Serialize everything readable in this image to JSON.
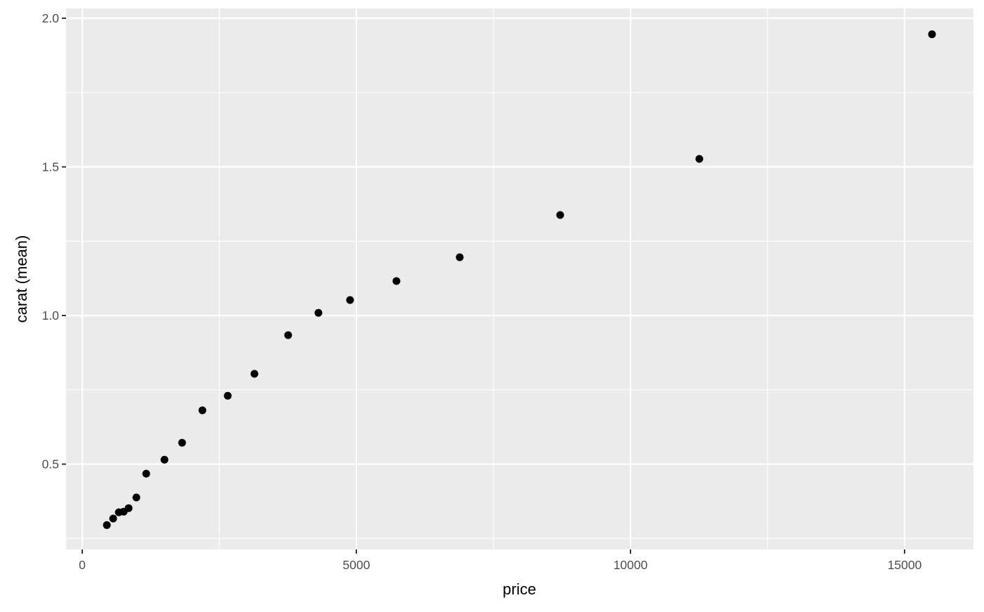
{
  "chart_data": {
    "type": "scatter",
    "title": "",
    "xlabel": "price",
    "ylabel": "carat (mean)",
    "xlim": [
      -295,
      16256
    ],
    "ylim": [
      0.213,
      2.033
    ],
    "xticks": [
      0,
      5000,
      10000,
      15000
    ],
    "xtick_labels": [
      "0",
      "5000",
      "10000",
      "15000"
    ],
    "yticks": [
      0.5,
      1.0,
      1.5,
      2.0
    ],
    "ytick_labels": [
      "0.5",
      "1.0",
      "1.5",
      "2.0"
    ],
    "grid": true,
    "background": "#EBEBEB",
    "point_color": "#000000",
    "points": [
      {
        "x": 449,
        "y": 0.295
      },
      {
        "x": 564,
        "y": 0.317
      },
      {
        "x": 667,
        "y": 0.338
      },
      {
        "x": 756,
        "y": 0.34
      },
      {
        "x": 846,
        "y": 0.352
      },
      {
        "x": 987,
        "y": 0.388
      },
      {
        "x": 1167,
        "y": 0.468
      },
      {
        "x": 1500,
        "y": 0.515
      },
      {
        "x": 1821,
        "y": 0.572
      },
      {
        "x": 2192,
        "y": 0.681
      },
      {
        "x": 2654,
        "y": 0.73
      },
      {
        "x": 3141,
        "y": 0.804
      },
      {
        "x": 3756,
        "y": 0.934
      },
      {
        "x": 4308,
        "y": 1.009
      },
      {
        "x": 4885,
        "y": 1.052
      },
      {
        "x": 5731,
        "y": 1.116
      },
      {
        "x": 6885,
        "y": 1.196
      },
      {
        "x": 8718,
        "y": 1.338
      },
      {
        "x": 11256,
        "y": 1.527
      },
      {
        "x": 15500,
        "y": 1.946
      }
    ]
  }
}
